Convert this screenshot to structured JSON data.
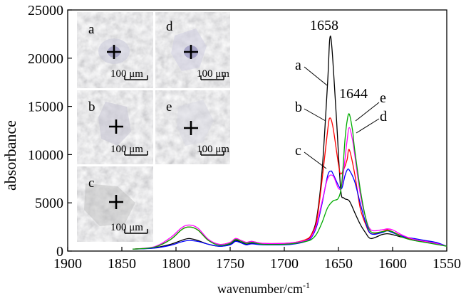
{
  "chart_data": {
    "type": "line",
    "title": "",
    "xlabel": "wavenumber/cm",
    "xlabel_sup": "-1",
    "ylabel": "absorbance",
    "xlim": [
      1900,
      1550
    ],
    "ylim": [
      0,
      25000
    ],
    "x_reversed": true,
    "x_ticks": [
      1900,
      1850,
      1800,
      1750,
      1700,
      1650,
      1600,
      1550
    ],
    "y_ticks": [
      0,
      5000,
      10000,
      15000,
      20000,
      25000
    ],
    "x_tick_labels": [
      "1900",
      "1850",
      "1800",
      "1750",
      "1700",
      "1650",
      "1600",
      "1550"
    ],
    "y_tick_labels": [
      "0",
      "5000",
      "10000",
      "15000",
      "20000",
      "25000"
    ],
    "grid": false,
    "series": [
      {
        "name": "a",
        "color": "#000000",
        "x": [
          1840,
          1820,
          1805,
          1795,
          1788,
          1780,
          1770,
          1760,
          1750,
          1745,
          1740,
          1735,
          1730,
          1720,
          1700,
          1690,
          1680,
          1675,
          1670,
          1665,
          1660,
          1658,
          1656,
          1652,
          1648,
          1645,
          1640,
          1635,
          1630,
          1625,
          1620,
          1610,
          1605,
          1600,
          1590,
          1580,
          1570,
          1560,
          1550
        ],
        "y": [
          200,
          350,
          700,
          1100,
          1300,
          1100,
          700,
          500,
          700,
          1100,
          900,
          700,
          800,
          700,
          700,
          800,
          1100,
          1700,
          3500,
          8500,
          17500,
          22000,
          21000,
          14000,
          6500,
          5500,
          5200,
          4000,
          2800,
          1900,
          1300,
          1700,
          1800,
          1700,
          1400,
          1100,
          1000,
          800,
          500
        ]
      },
      {
        "name": "b",
        "color": "#ff0000",
        "x": [
          1840,
          1820,
          1805,
          1795,
          1788,
          1780,
          1770,
          1760,
          1750,
          1745,
          1740,
          1735,
          1730,
          1720,
          1700,
          1690,
          1680,
          1675,
          1670,
          1665,
          1660,
          1658,
          1655,
          1650,
          1648,
          1645,
          1642,
          1640,
          1635,
          1630,
          1625,
          1620,
          1610,
          1605,
          1600,
          1590,
          1580,
          1570,
          1560,
          1550
        ],
        "y": [
          200,
          400,
          1200,
          2200,
          2500,
          2200,
          1100,
          700,
          900,
          1300,
          1100,
          900,
          1000,
          800,
          800,
          900,
          1200,
          1700,
          3200,
          7500,
          12500,
          13800,
          12800,
          9000,
          8000,
          8500,
          9500,
          10500,
          8000,
          4500,
          2800,
          1800,
          2000,
          2200,
          2000,
          1500,
          1200,
          1000,
          800,
          500
        ]
      },
      {
        "name": "c",
        "color": "#0000ff",
        "x": [
          1840,
          1820,
          1805,
          1795,
          1788,
          1780,
          1770,
          1760,
          1750,
          1745,
          1740,
          1735,
          1730,
          1720,
          1700,
          1690,
          1680,
          1675,
          1670,
          1665,
          1660,
          1657,
          1655,
          1650,
          1647,
          1644,
          1642,
          1640,
          1635,
          1630,
          1625,
          1620,
          1610,
          1605,
          1600,
          1590,
          1580,
          1570,
          1560,
          1550
        ],
        "y": [
          200,
          300,
          600,
          950,
          1100,
          1000,
          700,
          500,
          650,
          1000,
          850,
          650,
          750,
          650,
          650,
          750,
          1000,
          1400,
          2600,
          5000,
          7800,
          8300,
          8000,
          6800,
          6500,
          7800,
          8400,
          8400,
          7200,
          5000,
          3000,
          1800,
          1900,
          2100,
          1900,
          1500,
          1300,
          1100,
          900,
          500
        ]
      },
      {
        "name": "d",
        "color": "#ff00ff",
        "x": [
          1840,
          1820,
          1805,
          1795,
          1788,
          1780,
          1770,
          1760,
          1750,
          1745,
          1740,
          1735,
          1730,
          1720,
          1700,
          1690,
          1680,
          1675,
          1670,
          1665,
          1660,
          1655,
          1650,
          1647,
          1644,
          1642,
          1640,
          1637,
          1635,
          1630,
          1625,
          1620,
          1610,
          1605,
          1600,
          1590,
          1580,
          1570,
          1560,
          1550
        ],
        "y": [
          200,
          450,
          1400,
          2400,
          2700,
          2400,
          1200,
          700,
          900,
          1300,
          1100,
          900,
          1000,
          800,
          800,
          900,
          1100,
          1500,
          2800,
          5200,
          7500,
          7800,
          6500,
          6800,
          9500,
          11500,
          12800,
          11500,
          10000,
          6000,
          3500,
          2200,
          2200,
          2300,
          2200,
          1600,
          1200,
          1000,
          800,
          500
        ]
      },
      {
        "name": "e",
        "color": "#00aa00",
        "x": [
          1840,
          1820,
          1805,
          1795,
          1788,
          1780,
          1770,
          1760,
          1750,
          1745,
          1740,
          1735,
          1730,
          1720,
          1700,
          1690,
          1680,
          1675,
          1670,
          1665,
          1660,
          1655,
          1650,
          1647,
          1644,
          1642,
          1640,
          1637,
          1635,
          1630,
          1625,
          1620,
          1610,
          1605,
          1600,
          1590,
          1580,
          1570,
          1560,
          1550
        ],
        "y": [
          200,
          400,
          1200,
          2200,
          2500,
          2200,
          1100,
          600,
          800,
          1200,
          1000,
          800,
          900,
          700,
          700,
          800,
          1000,
          1200,
          1800,
          3000,
          4500,
          5200,
          5500,
          7000,
          11500,
          13500,
          14200,
          12500,
          10500,
          6500,
          3500,
          2000,
          2000,
          2100,
          2000,
          1400,
          1100,
          900,
          700,
          500
        ]
      }
    ],
    "annotations": {
      "peak_1658": "1658",
      "peak_1644": "1644",
      "label_a": "a",
      "label_b": "b",
      "label_c": "c",
      "label_d": "d",
      "label_e": "e"
    },
    "inset": {
      "panels": [
        {
          "letter": "a",
          "scale_bar": "100 μm"
        },
        {
          "letter": "b",
          "scale_bar": "100 μm"
        },
        {
          "letter": "c",
          "scale_bar": "100 μm"
        },
        {
          "letter": "d",
          "scale_bar": "100 μm"
        },
        {
          "letter": "e",
          "scale_bar": "100 μm"
        }
      ]
    }
  }
}
